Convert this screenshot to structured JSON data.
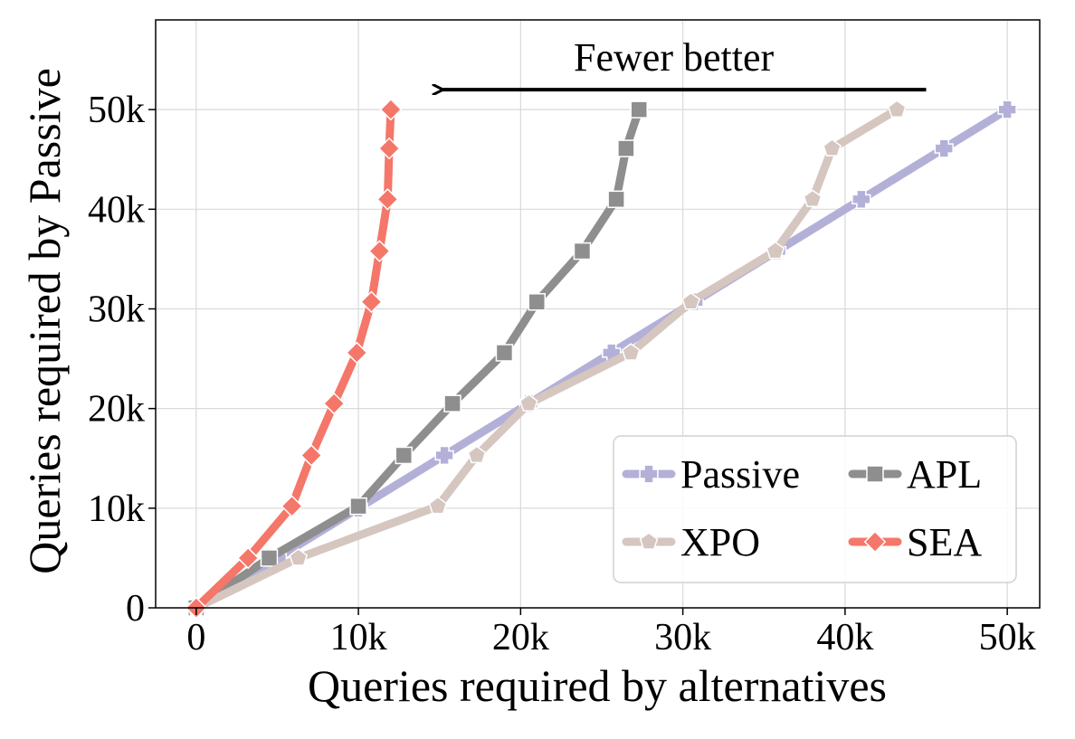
{
  "chart_data": {
    "type": "line",
    "xlabel": "Queries required by alternatives",
    "ylabel": "Queries required by Passive",
    "xlim": [
      -2500,
      52000
    ],
    "ylim": [
      0,
      59000
    ],
    "x_ticks": [
      0,
      10000,
      20000,
      30000,
      40000,
      50000
    ],
    "x_tick_labels": [
      "0",
      "10k",
      "20k",
      "30k",
      "40k",
      "50k"
    ],
    "y_ticks": [
      0,
      10000,
      20000,
      30000,
      40000,
      50000
    ],
    "y_tick_labels": [
      "0",
      "10k",
      "20k",
      "30k",
      "40k",
      "50k"
    ],
    "grid": true,
    "legend_position": "lower-right",
    "legend_columns": 2,
    "annotation": {
      "text": "Fewer better",
      "arrow_from": [
        45000,
        52000
      ],
      "arrow_to": [
        15000,
        52000
      ]
    },
    "series": [
      {
        "name": "Passive",
        "color": "#b3b0d8",
        "marker": "plus",
        "x": [
          0,
          5000,
          10000,
          15300,
          20500,
          25600,
          30700,
          35800,
          41000,
          46100,
          50000
        ],
        "y": [
          0,
          5000,
          10000,
          15300,
          20500,
          25600,
          30700,
          35800,
          41000,
          46100,
          50000
        ]
      },
      {
        "name": "APL",
        "color": "#8e8e8e",
        "marker": "square",
        "x": [
          0,
          4500,
          10000,
          12800,
          15800,
          19000,
          21000,
          23800,
          25900,
          26500,
          27300
        ],
        "y": [
          0,
          5000,
          10200,
          15300,
          20500,
          25600,
          30700,
          35800,
          41000,
          46100,
          50000
        ]
      },
      {
        "name": "XPO",
        "color": "#d5c6bf",
        "marker": "pentagon",
        "x": [
          0,
          6300,
          14900,
          17300,
          20500,
          26800,
          30500,
          35700,
          38000,
          39200,
          43200
        ],
        "y": [
          0,
          5000,
          10200,
          15300,
          20500,
          25600,
          30700,
          35800,
          41000,
          46100,
          50000
        ]
      },
      {
        "name": "SEA",
        "color": "#f4776a",
        "marker": "diamond",
        "x": [
          0,
          3200,
          5900,
          7100,
          8500,
          9900,
          10800,
          11300,
          11800,
          11900,
          12000
        ],
        "y": [
          0,
          5000,
          10200,
          15300,
          20500,
          25600,
          30700,
          35800,
          41000,
          46100,
          50000
        ]
      }
    ]
  }
}
